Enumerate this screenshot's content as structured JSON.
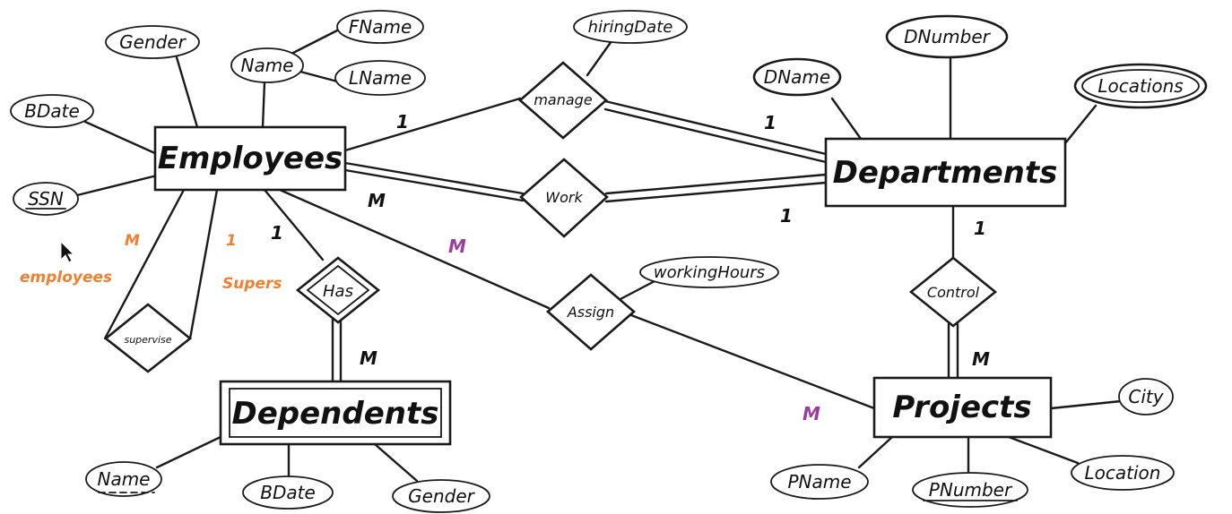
{
  "colors": {
    "ink": "#111111",
    "annotation": "#f08030",
    "cardinality_purple": "#9a3ca0"
  },
  "entities": {
    "employees": "Employees",
    "departments": "Departments",
    "dependents": "Dependents",
    "projects": "Projects"
  },
  "relationships": {
    "manage": "manage",
    "work": "Work",
    "supervise": "supervise",
    "has": "Has",
    "assign": "Assign",
    "control": "Control"
  },
  "attributes": {
    "emp_gender": "Gender",
    "emp_name": "Name",
    "emp_fname": "FName",
    "emp_lname": "LName",
    "emp_bdate": "BDate",
    "emp_ssn": "SSN",
    "hiring_date": "hiringDate",
    "dnumber": "DNumber",
    "dname": "DName",
    "locations": "Locations",
    "working_hours": "workingHours",
    "dep_name": "Name",
    "dep_bdate": "BDate",
    "dep_gender": "Gender",
    "city": "City",
    "pname": "PName",
    "pnumber": "PNumber",
    "proj_location": "Location"
  },
  "cardinalities": {
    "manage_emp": "1",
    "manage_dept": "1",
    "work_emp": "M",
    "work_dept": "1",
    "assign_emp": "M",
    "assign_proj": "M",
    "has_emp": "1",
    "has_dep": "M",
    "control_dept": "1",
    "control_proj": "M"
  },
  "annotations": {
    "employees_m": "M",
    "employees_label": "employees",
    "supers_1": "1",
    "supers_label": "Supers"
  }
}
